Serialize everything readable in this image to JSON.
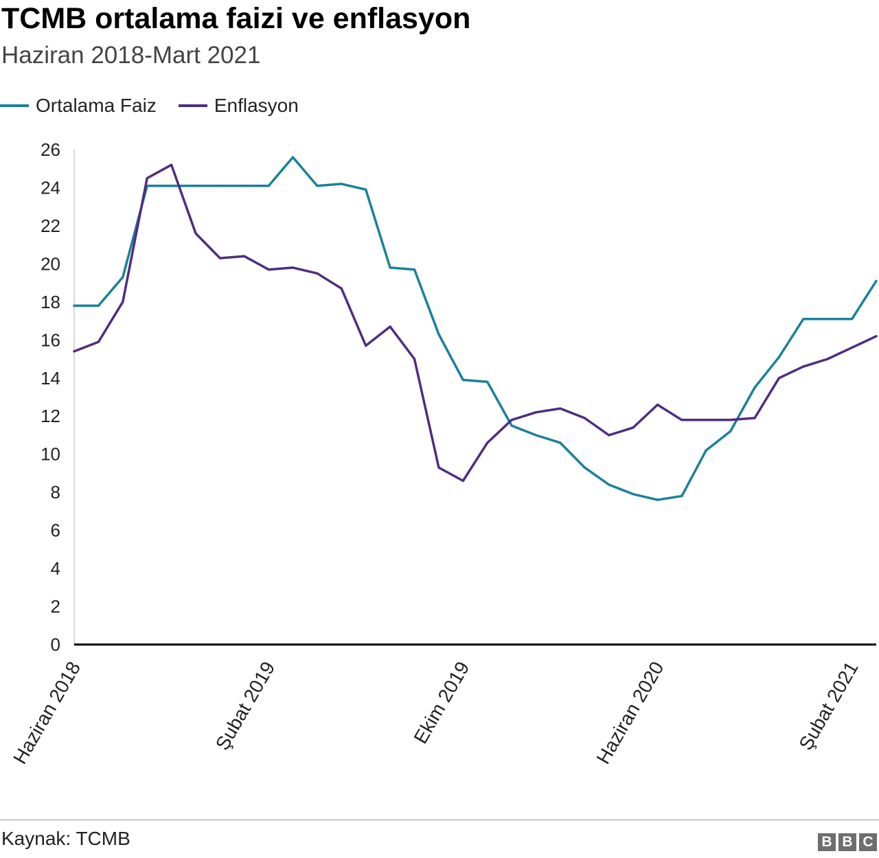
{
  "header": {
    "title": "TCMB ortalama faizi ve enflasyon",
    "subtitle": "Haziran 2018-Mart 2021"
  },
  "legend": [
    {
      "label": "Ortalama Faiz",
      "color": "#1a8199"
    },
    {
      "label": "Enflasyon",
      "color": "#4f2d7f"
    }
  ],
  "footer": {
    "source": "Kaynak: TCMB",
    "logo": [
      "B",
      "B",
      "C"
    ]
  },
  "chart_data": {
    "type": "line",
    "title": "TCMB ortalama faizi ve enflasyon",
    "subtitle": "Haziran 2018-Mart 2021",
    "xlabel": "",
    "ylabel": "",
    "ylim": [
      0,
      26
    ],
    "yticks": [
      0,
      2,
      4,
      6,
      8,
      10,
      12,
      14,
      16,
      18,
      20,
      22,
      24,
      26
    ],
    "x_tick_labels": [
      {
        "index": 0,
        "label": "Haziran 2018"
      },
      {
        "index": 8,
        "label": "Şubat 2019"
      },
      {
        "index": 16,
        "label": "Ekim 2019"
      },
      {
        "index": 24,
        "label": "Haziran 2020"
      },
      {
        "index": 32,
        "label": "Şubat 2021"
      }
    ],
    "grid": false,
    "legend_position": "top-left",
    "series": [
      {
        "name": "Ortalama Faiz",
        "color": "#1a8199",
        "values": [
          17.8,
          17.8,
          19.3,
          24.1,
          24.1,
          24.1,
          24.1,
          24.1,
          24.1,
          25.6,
          24.1,
          24.2,
          23.9,
          19.8,
          19.7,
          16.3,
          13.9,
          13.8,
          11.5,
          11.0,
          10.6,
          9.3,
          8.4,
          7.9,
          7.6,
          7.8,
          10.2,
          11.2,
          13.5,
          15.1,
          17.1,
          17.1,
          17.1,
          19.1
        ]
      },
      {
        "name": "Enflasyon",
        "color": "#4f2d7f",
        "values": [
          15.4,
          15.9,
          18.0,
          24.5,
          25.2,
          21.6,
          20.3,
          20.4,
          19.7,
          19.8,
          19.5,
          18.7,
          15.7,
          16.7,
          15.0,
          9.3,
          8.6,
          10.6,
          11.8,
          12.2,
          12.4,
          11.9,
          11.0,
          11.4,
          12.6,
          11.8,
          11.8,
          11.8,
          11.9,
          14.0,
          14.6,
          15.0,
          15.6,
          16.2
        ]
      }
    ]
  }
}
